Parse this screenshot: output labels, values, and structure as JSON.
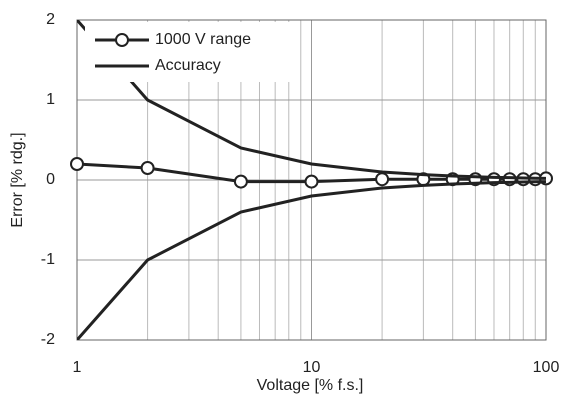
{
  "chart_data": {
    "type": "line",
    "xlabel": "Voltage [% f.s.]",
    "ylabel": "Error [% rdg.]",
    "x": [
      1,
      2,
      5,
      10,
      20,
      30,
      40,
      50,
      60,
      70,
      80,
      90,
      100
    ],
    "series": [
      {
        "name": "1000 V range",
        "color": "#222222",
        "markers": true,
        "values": [
          0.2,
          0.15,
          -0.02,
          -0.02,
          0.01,
          0.01,
          0.01,
          0.01,
          0.01,
          0.01,
          0.01,
          0.01,
          0.02
        ]
      },
      {
        "name": "Accuracy",
        "color": "#222222",
        "markers": false,
        "values": [
          2,
          1,
          0.4,
          0.2,
          0.1,
          0.067,
          0.05,
          0.04,
          0.033,
          0.029,
          0.025,
          0.022,
          0.02
        ],
        "lower": [
          -2,
          -1,
          -0.4,
          -0.2,
          -0.1,
          -0.067,
          -0.05,
          -0.04,
          -0.033,
          -0.029,
          -0.025,
          -0.022,
          -0.02
        ]
      }
    ],
    "xlim": [
      1,
      100
    ],
    "xticks": [
      1,
      10,
      100
    ],
    "xlog": true,
    "xminor_ticks": [
      2,
      3,
      4,
      5,
      6,
      7,
      8,
      9,
      20,
      30,
      40,
      50,
      60,
      70,
      80,
      90
    ],
    "ylim": [
      -2,
      2
    ],
    "yticks": [
      -2,
      -1,
      0,
      1,
      2
    ],
    "grid": true,
    "legend": "upper left"
  }
}
